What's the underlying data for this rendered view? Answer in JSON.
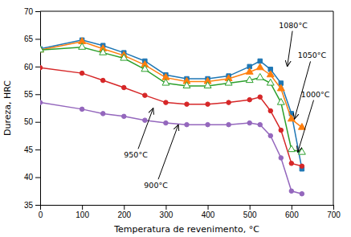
{
  "chart_data": {
    "type": "line",
    "x_label": "Temperatura de revenimento, °C",
    "y_label": "Dureza, HRC",
    "xlim": [
      0,
      700
    ],
    "ylim": [
      35,
      70
    ],
    "xticks": [
      0,
      100,
      200,
      300,
      400,
      500,
      600,
      700
    ],
    "yticks": [
      35,
      40,
      45,
      50,
      55,
      60,
      65,
      70
    ],
    "x": [
      0,
      100,
      150,
      200,
      250,
      300,
      350,
      400,
      450,
      500,
      525,
      550,
      575,
      600,
      625
    ],
    "series": [
      {
        "marker": "square",
        "values": [
          63.2,
          64.8,
          63.8,
          62.5,
          61.0,
          58.5,
          57.8,
          57.8,
          58.3,
          60.0,
          61.0,
          59.5,
          57.0,
          51.5,
          41.5
        ]
      },
      {
        "marker": "triangle",
        "values": [
          63.0,
          64.5,
          63.2,
          62.0,
          60.3,
          58.0,
          57.3,
          57.3,
          57.8,
          59.0,
          59.8,
          58.5,
          56.0,
          50.5,
          49.0
        ]
      },
      {
        "marker": "triangle-open",
        "values": [
          63.0,
          63.5,
          62.5,
          61.5,
          59.5,
          57.0,
          56.5,
          56.5,
          57.0,
          57.5,
          58.0,
          57.0,
          53.5,
          45.0,
          44.5
        ]
      },
      {
        "marker": "circle",
        "values": [
          59.8,
          58.8,
          57.5,
          56.2,
          54.8,
          53.5,
          53.2,
          53.2,
          53.5,
          54.0,
          54.5,
          52.0,
          48.5,
          42.5,
          42.0
        ]
      },
      {
        "marker": "circle",
        "values": [
          53.5,
          52.3,
          51.5,
          51.0,
          50.3,
          49.8,
          49.5,
          49.5,
          49.5,
          49.8,
          49.5,
          47.5,
          43.5,
          37.5,
          37.0
        ]
      }
    ],
    "annotations": [
      {
        "text": "1080°C",
        "xy": [
          590,
          60.0
        ],
        "xytext": [
          570,
          67.5
        ]
      },
      {
        "text": "1050°C",
        "xy": [
          607,
          50.5
        ],
        "xytext": [
          615,
          62.0
        ]
      },
      {
        "text": "1000°C",
        "xy": [
          615,
          44.5
        ],
        "xytext": [
          623,
          55.0
        ]
      },
      {
        "text": "950°C",
        "xy": [
          270,
          52.5
        ],
        "xytext": [
          200,
          44.0
        ]
      },
      {
        "text": "900°C",
        "xy": [
          330,
          49.5
        ],
        "xytext": [
          248,
          38.5
        ]
      }
    ]
  }
}
